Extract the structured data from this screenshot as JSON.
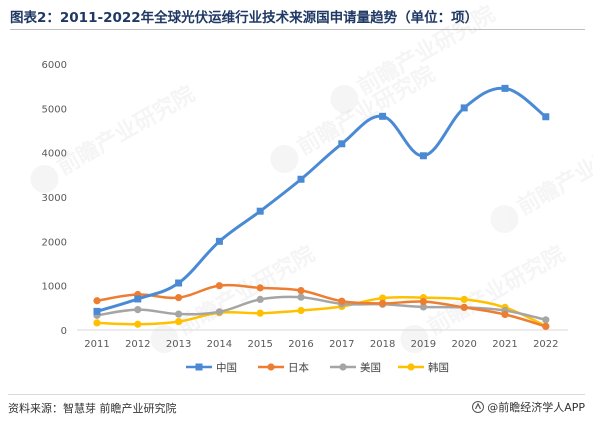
{
  "page": {
    "title": "图表2：2011-2022年全球光伏运维行业技术来源国申请量趋势（单位：项）",
    "source": "资料来源：智慧芽 前瞻产业研究院",
    "brand": "@前瞻经济学人APP",
    "watermark": "前瞻产业研究院"
  },
  "chart_data": {
    "type": "line",
    "title": "",
    "xlabel": "",
    "ylabel": "",
    "categories": [
      "2011",
      "2012",
      "2013",
      "2014",
      "2015",
      "2016",
      "2017",
      "2018",
      "2019",
      "2020",
      "2021",
      "2022"
    ],
    "ylim": [
      0,
      6000
    ],
    "yticks": [
      0,
      1000,
      2000,
      3000,
      4000,
      5000,
      6000
    ],
    "grid": false,
    "smooth": true,
    "legend_position": "bottom",
    "series": [
      {
        "name": "中国",
        "color": "#4a8ad4",
        "marker": "square",
        "values": [
          420,
          700,
          1060,
          2000,
          2680,
          3400,
          4200,
          4820,
          3930,
          5010,
          5450,
          4810
        ]
      },
      {
        "name": "日本",
        "color": "#ed7d31",
        "marker": "circle",
        "values": [
          660,
          800,
          730,
          1000,
          950,
          890,
          650,
          600,
          640,
          510,
          350,
          80
        ]
      },
      {
        "name": "美国",
        "color": "#a5a5a5",
        "marker": "circle",
        "values": [
          330,
          460,
          360,
          410,
          690,
          740,
          590,
          580,
          520,
          510,
          440,
          230
        ]
      },
      {
        "name": "韩国",
        "color": "#ffc000",
        "marker": "circle",
        "values": [
          160,
          130,
          190,
          390,
          380,
          440,
          530,
          720,
          730,
          690,
          510,
          90
        ]
      }
    ]
  }
}
